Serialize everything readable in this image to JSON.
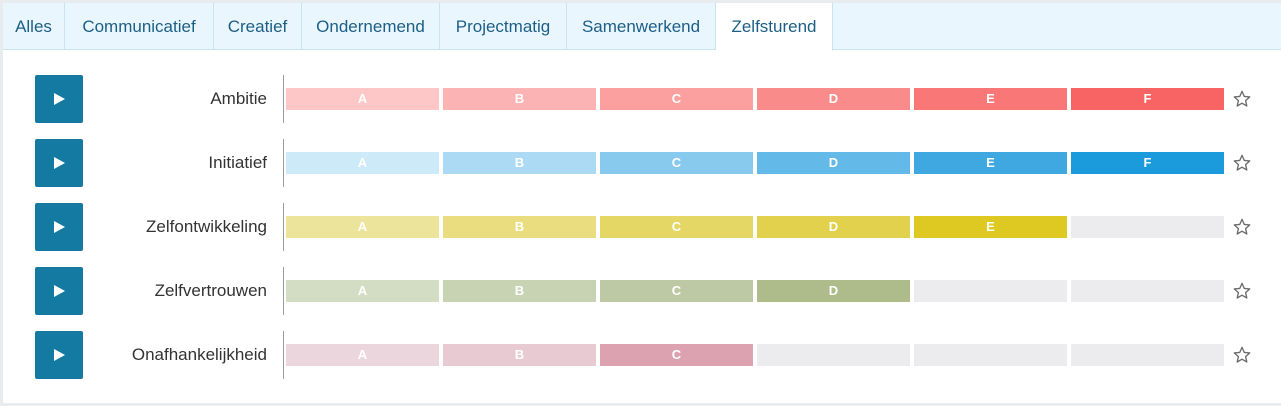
{
  "tabs": [
    "Alles",
    "Communicatief",
    "Creatief",
    "Ondernemend",
    "Projectmatig",
    "Samenwerkend",
    "Zelfsturend"
  ],
  "active_tab": "Zelfsturend",
  "rows": [
    {
      "label": "Ambitie",
      "level": 6,
      "levels": [
        "A",
        "B",
        "C",
        "D",
        "E",
        "F"
      ],
      "colors": [
        "#fdc7c7",
        "#fcb3b3",
        "#fb9f9f",
        "#fa8b8b",
        "#f97777",
        "#f86464"
      ]
    },
    {
      "label": "Initiatief",
      "level": 6,
      "levels": [
        "A",
        "B",
        "C",
        "D",
        "E",
        "F"
      ],
      "colors": [
        "#cdeaf8",
        "#acdaf4",
        "#87caee",
        "#63b9e7",
        "#3fa8e1",
        "#1c9bdc"
      ]
    },
    {
      "label": "Zelfontwikkeling",
      "level": 5,
      "levels": [
        "A",
        "B",
        "C",
        "D",
        "E",
        ""
      ],
      "colors": [
        "#ede49b",
        "#e9dd80",
        "#e5d766",
        "#e1d14c",
        "#ddc922",
        "#ececee"
      ]
    },
    {
      "label": "Zelfvertrouwen",
      "level": 4,
      "levels": [
        "A",
        "B",
        "C",
        "D",
        "",
        ""
      ],
      "colors": [
        "#d3ddc4",
        "#c8d3b4",
        "#bcc9a4",
        "#aebc8b",
        "#ececee",
        "#ececee"
      ]
    },
    {
      "label": "Onafhankelijkheid",
      "level": 3,
      "levels": [
        "A",
        "B",
        "C",
        "",
        "",
        ""
      ],
      "colors": [
        "#ead6dc",
        "#e8cbd2",
        "#dca2b0",
        "#ececee",
        "#ececee",
        "#ececee"
      ]
    }
  ],
  "icons": {
    "play": "play-icon",
    "star": "star-outline-icon"
  }
}
